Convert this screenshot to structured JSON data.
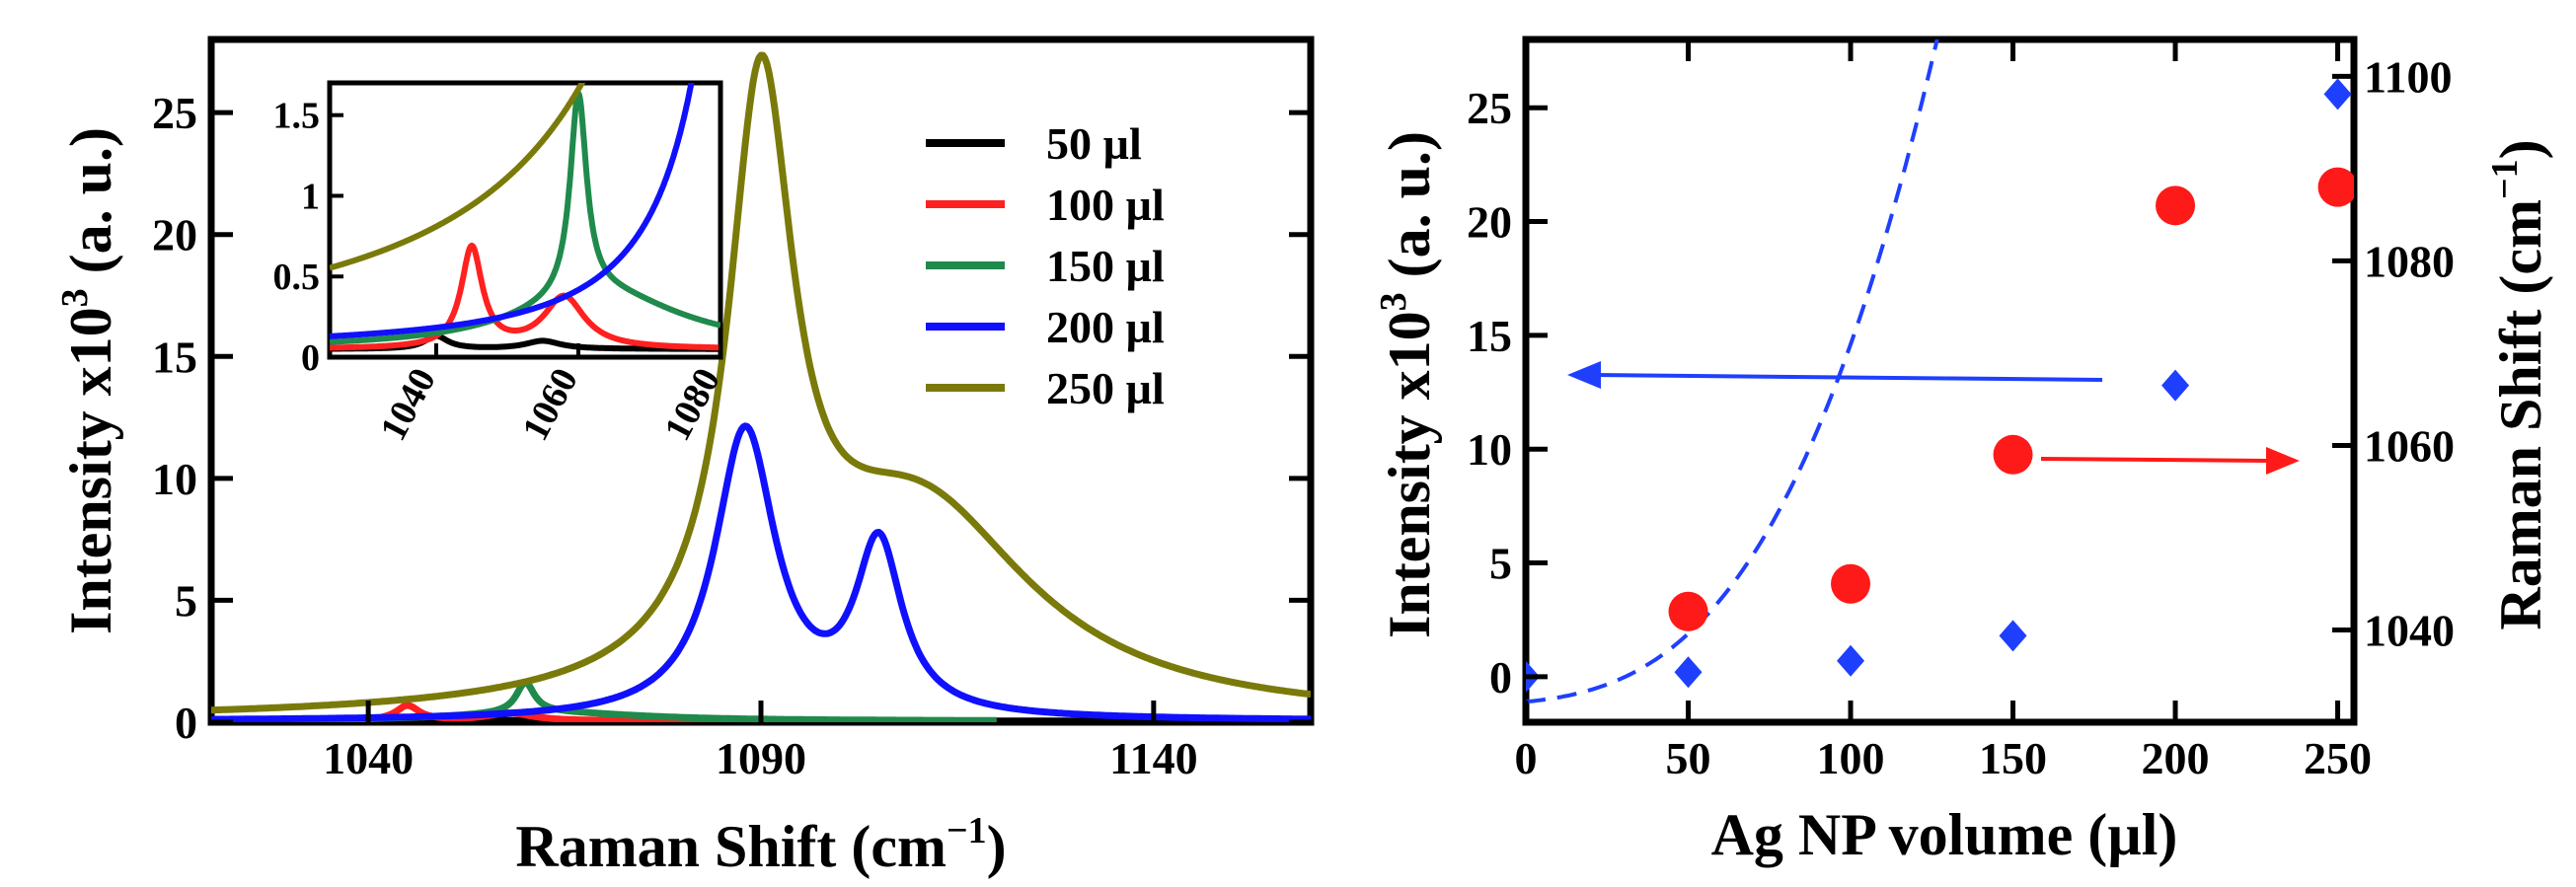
{
  "chart_data": [
    {
      "type": "line",
      "panel": "left",
      "xlabel_main": "Raman Shift (cm",
      "xlabel_sup": "−1",
      "xlabel_end": ")",
      "ylabel_main": "Intensity x10",
      "ylabel_sup": "3",
      "ylabel_end": " (a. u.)",
      "xlim": [
        1020,
        1160
      ],
      "ylim": [
        0,
        28
      ],
      "xticks": [
        1040,
        1090,
        1140
      ],
      "yticks": [
        0,
        5,
        10,
        15,
        20,
        25
      ],
      "legend_position": "top-right",
      "series": [
        {
          "name": "50 µl",
          "color": "#000000",
          "baseline": 0.05,
          "lineEnd": 1160,
          "peaks": [
            {
              "c": 1040,
              "a": 0.08,
              "w": 2.0
            },
            {
              "c": 1055,
              "a": 0.05,
              "w": 3.0
            }
          ]
        },
        {
          "name": "100 µl",
          "color": "#ff2020",
          "baseline": 0.05,
          "lineEnd": 1120,
          "peaks": [
            {
              "c": 1045,
              "a": 0.62,
              "w": 1.8
            },
            {
              "c": 1058,
              "a": 0.32,
              "w": 3.5
            }
          ]
        },
        {
          "name": "150 µl",
          "color": "#1f8a4c",
          "baseline": 0.05,
          "lineEnd": 1120,
          "peaks": [
            {
              "c": 1060,
              "a": 1.25,
              "w": 1.4
            },
            {
              "c": 1063,
              "a": 0.35,
              "w": 14.0
            }
          ]
        },
        {
          "name": "200 µl",
          "color": "#1010ff",
          "baseline": 0.05,
          "lineEnd": 1160,
          "peaks": [
            {
              "c": 1088,
              "a": 11.8,
              "w": 4.7
            },
            {
              "c": 1105,
              "a": 6.9,
              "w": 3.6
            }
          ]
        },
        {
          "name": "250 µl",
          "color": "#7a7a0a",
          "baseline": 0.05,
          "lineEnd": 1160,
          "peaks": [
            {
              "c": 1090,
              "a": 23.5,
              "w": 5.0
            },
            {
              "c": 1110,
              "a": 8.5,
              "w": 18.0
            }
          ]
        }
      ],
      "inset": {
        "xlim": [
          1025,
          1080
        ],
        "ylim": [
          0,
          1.7
        ],
        "xticks": [
          1040,
          1060,
          1080
        ],
        "yticks": [
          0,
          0.5,
          1,
          1.5
        ],
        "ytick_labels": [
          "0",
          "0.5",
          "1",
          "1.5"
        ]
      }
    },
    {
      "type": "scatter",
      "panel": "right",
      "xlabel": "Ag NP volume  (µl)",
      "ylabel_left_main": "Intensity x10",
      "ylabel_left_sup": "3",
      "ylabel_left_end": " (a. u.)",
      "ylabel_right_main": "Raman Shift (cm",
      "ylabel_right_sup": "−1",
      "ylabel_right_end": ")",
      "xlim": [
        0,
        255
      ],
      "ylim_left": [
        -2,
        28
      ],
      "ylim_right": [
        1030,
        1104
      ],
      "xticks": [
        0,
        50,
        100,
        150,
        200,
        250
      ],
      "yticks_left": [
        0,
        5,
        10,
        15,
        20,
        25
      ],
      "yticks_right": [
        1040,
        1060,
        1080,
        1100
      ],
      "series": [
        {
          "name": "Intensity",
          "axis": "left",
          "marker": "diamond",
          "color": "#1f3fff",
          "x": [
            0,
            50,
            100,
            150,
            200,
            250
          ],
          "values": [
            0.0,
            0.2,
            0.7,
            1.8,
            12.8,
            25.6
          ]
        },
        {
          "name": "Raman Shift",
          "axis": "right",
          "marker": "circle",
          "color": "#ff1a1a",
          "x": [
            50,
            100,
            150,
            200,
            250
          ],
          "values": [
            1042,
            1045,
            1059,
            1086,
            1088
          ]
        }
      ],
      "fit": {
        "color": "#1f3fff",
        "style": "dashed",
        "coefficients": [
          -0.0011,
          1.4e-05,
          4e-07,
          1.03e-08
        ]
      },
      "arrows": [
        {
          "direction": "left",
          "color": "#1f3fff",
          "axis": "left"
        },
        {
          "direction": "right",
          "color": "#ff1a1a",
          "axis": "right"
        }
      ]
    }
  ]
}
